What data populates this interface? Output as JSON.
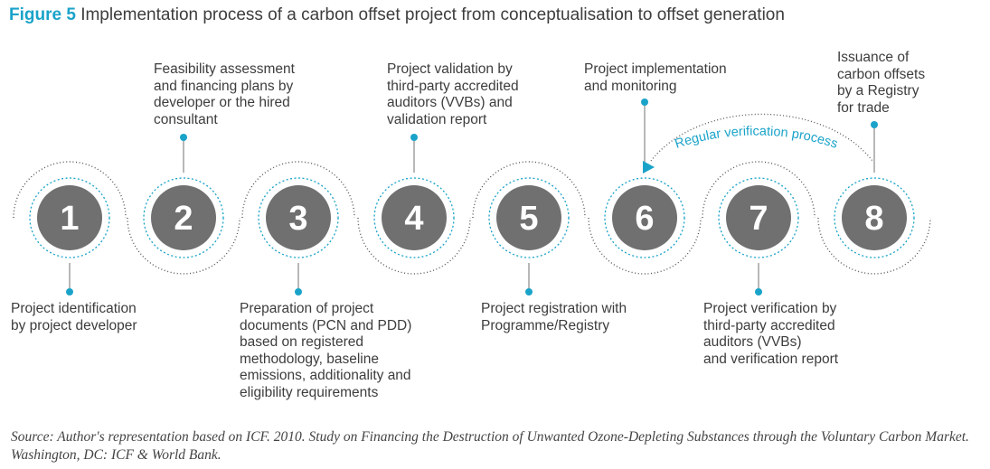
{
  "figure_label": "Figure 5",
  "title": "Implementation process of a carbon offset project from conceptualisation to offset generation",
  "steps": [
    {
      "number": "1",
      "label": "Project identification\nby project developer"
    },
    {
      "number": "2",
      "label": "Feasibility assessment\nand financing plans by\ndeveloper or the hired\nconsultant"
    },
    {
      "number": "3",
      "label": "Preparation of project\ndocuments (PCN and PDD)\nbased on registered\nmethodology, baseline\nemissions, additionality and\neligibility requirements"
    },
    {
      "number": "4",
      "label": "Project validation by\nthird-party accredited\nauditors (VVBs) and\nvalidation report"
    },
    {
      "number": "5",
      "label": "Project registration with\nProgramme/Registry"
    },
    {
      "number": "6",
      "label": "Project implementation\nand monitoring"
    },
    {
      "number": "7",
      "label": "Project verification by\nthird-party accredited\nauditors (VVBs)\nand verification report"
    },
    {
      "number": "8",
      "label": "Issuance of\ncarbon offsets\nby a Registry\nfor trade"
    }
  ],
  "cycle_label": "Regular verification process",
  "source": "Source: Author's representation based on ICF. 2010. Study on Financing the Destruction of Unwanted Ozone-Depleting Substances through the Voluntary Carbon Market. Washington, DC: ICF & World Bank.",
  "colors": {
    "accent": "#1aa3c9",
    "circle_fill": "#707070",
    "text": "#3d3d3d",
    "dots": "#555555"
  }
}
